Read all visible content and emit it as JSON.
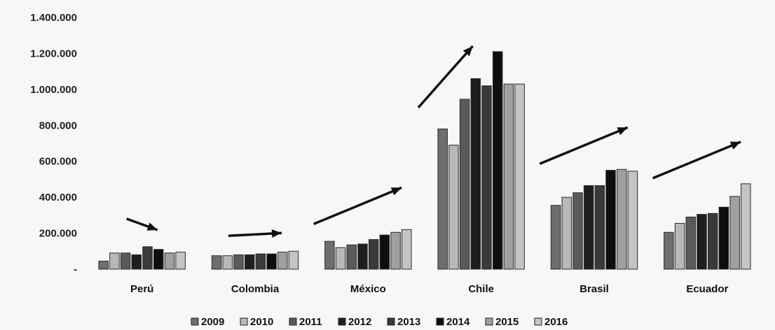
{
  "chart_data": {
    "type": "bar",
    "title": "",
    "xlabel": "",
    "ylabel": "",
    "ylim": [
      0,
      1400000
    ],
    "y_ticks": [
      {
        "value": 1400000,
        "label": "1.400.000"
      },
      {
        "value": 1200000,
        "label": "1.200.000"
      },
      {
        "value": 1000000,
        "label": "1.000.000"
      },
      {
        "value": 800000,
        "label": "800.000"
      },
      {
        "value": 600000,
        "label": "600.000"
      },
      {
        "value": 400000,
        "label": "400.000"
      },
      {
        "value": 200000,
        "label": "200.000"
      },
      {
        "value": 0,
        "label": "-"
      }
    ],
    "categories": [
      "Perú",
      "Colombia",
      "México",
      "Chile",
      "Brasil",
      "Ecuador"
    ],
    "legend_position": "bottom",
    "grid": false,
    "series": [
      {
        "name": "2009",
        "color": "#6e6e6e",
        "values": [
          45000,
          75000,
          155000,
          780000,
          355000,
          205000
        ]
      },
      {
        "name": "2010",
        "color": "#b8b8b8",
        "values": [
          90000,
          75000,
          120000,
          690000,
          400000,
          255000
        ]
      },
      {
        "name": "2011",
        "color": "#5a5a5a",
        "values": [
          90000,
          80000,
          135000,
          945000,
          425000,
          290000
        ]
      },
      {
        "name": "2012",
        "color": "#1e1e1e",
        "values": [
          80000,
          80000,
          140000,
          1060000,
          465000,
          305000
        ]
      },
      {
        "name": "2013",
        "color": "#3a3a3a",
        "values": [
          125000,
          85000,
          165000,
          1020000,
          465000,
          310000
        ]
      },
      {
        "name": "2014",
        "color": "#0e0e0e",
        "values": [
          110000,
          85000,
          190000,
          1210000,
          550000,
          345000
        ]
      },
      {
        "name": "2015",
        "color": "#a0a0a0",
        "values": [
          90000,
          95000,
          205000,
          1030000,
          555000,
          405000
        ]
      },
      {
        "name": "2016",
        "color": "#c4c4c4",
        "values": [
          95000,
          100000,
          220000,
          1030000,
          545000,
          475000
        ]
      }
    ],
    "trend_arrows": [
      {
        "category": "Perú",
        "direction": "down"
      },
      {
        "category": "Colombia",
        "direction": "flat-up"
      },
      {
        "category": "México",
        "direction": "up"
      },
      {
        "category": "Chile",
        "direction": "up"
      },
      {
        "category": "Brasil",
        "direction": "up"
      },
      {
        "category": "Ecuador",
        "direction": "up"
      }
    ]
  }
}
